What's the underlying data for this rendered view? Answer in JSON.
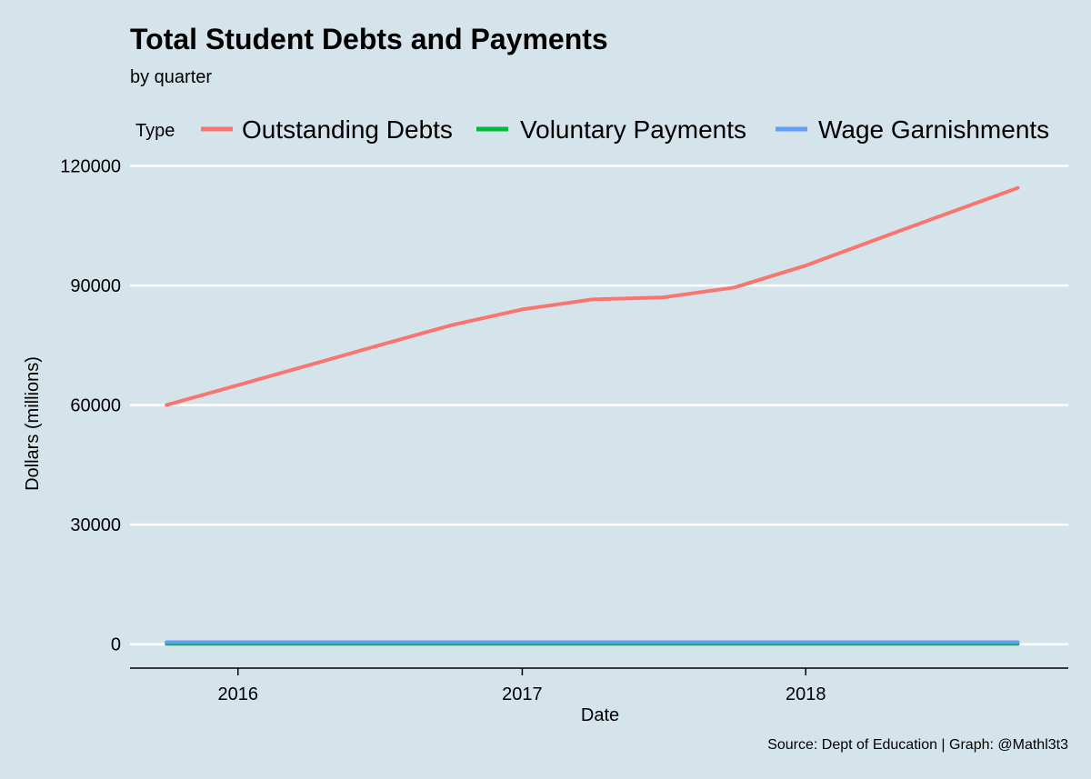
{
  "chart_data": {
    "type": "line",
    "title": "Total Student Debts and Payments",
    "subtitle": "by quarter",
    "xlabel": "Date",
    "ylabel": "Dollars (millions)",
    "caption": "Source: Dept of Education | Graph: @Mathl3t3",
    "legend_title": "Type",
    "legend_position": "top",
    "grid": "horizontal major only",
    "x": [
      "2015-10-01",
      "2016-01-01",
      "2016-04-01",
      "2016-07-01",
      "2016-10-01",
      "2017-01-01",
      "2017-04-01",
      "2017-07-01",
      "2017-10-01",
      "2018-01-01",
      "2018-04-01",
      "2018-07-01",
      "2018-10-01"
    ],
    "x_ticks": [
      "2016",
      "2017",
      "2018"
    ],
    "xlim": [
      "2015-08-15",
      "2018-12-05"
    ],
    "ylim": [
      -6000,
      124000
    ],
    "y_ticks": [
      0,
      30000,
      60000,
      90000,
      120000
    ],
    "series": [
      {
        "name": "Outstanding Debts",
        "color": "#f8766d",
        "values": [
          60000,
          65000,
          70000,
          75000,
          80000,
          84000,
          86500,
          87000,
          89500,
          95000,
          101500,
          108000,
          114500
        ]
      },
      {
        "name": "Voluntary Payments",
        "color": "#00ba38",
        "values": [
          100,
          100,
          100,
          100,
          100,
          100,
          100,
          100,
          100,
          100,
          100,
          100,
          100
        ]
      },
      {
        "name": "Wage Garnishments",
        "color": "#619cff",
        "values": [
          500,
          500,
          500,
          500,
          500,
          500,
          500,
          500,
          500,
          500,
          500,
          500,
          500
        ]
      }
    ]
  }
}
